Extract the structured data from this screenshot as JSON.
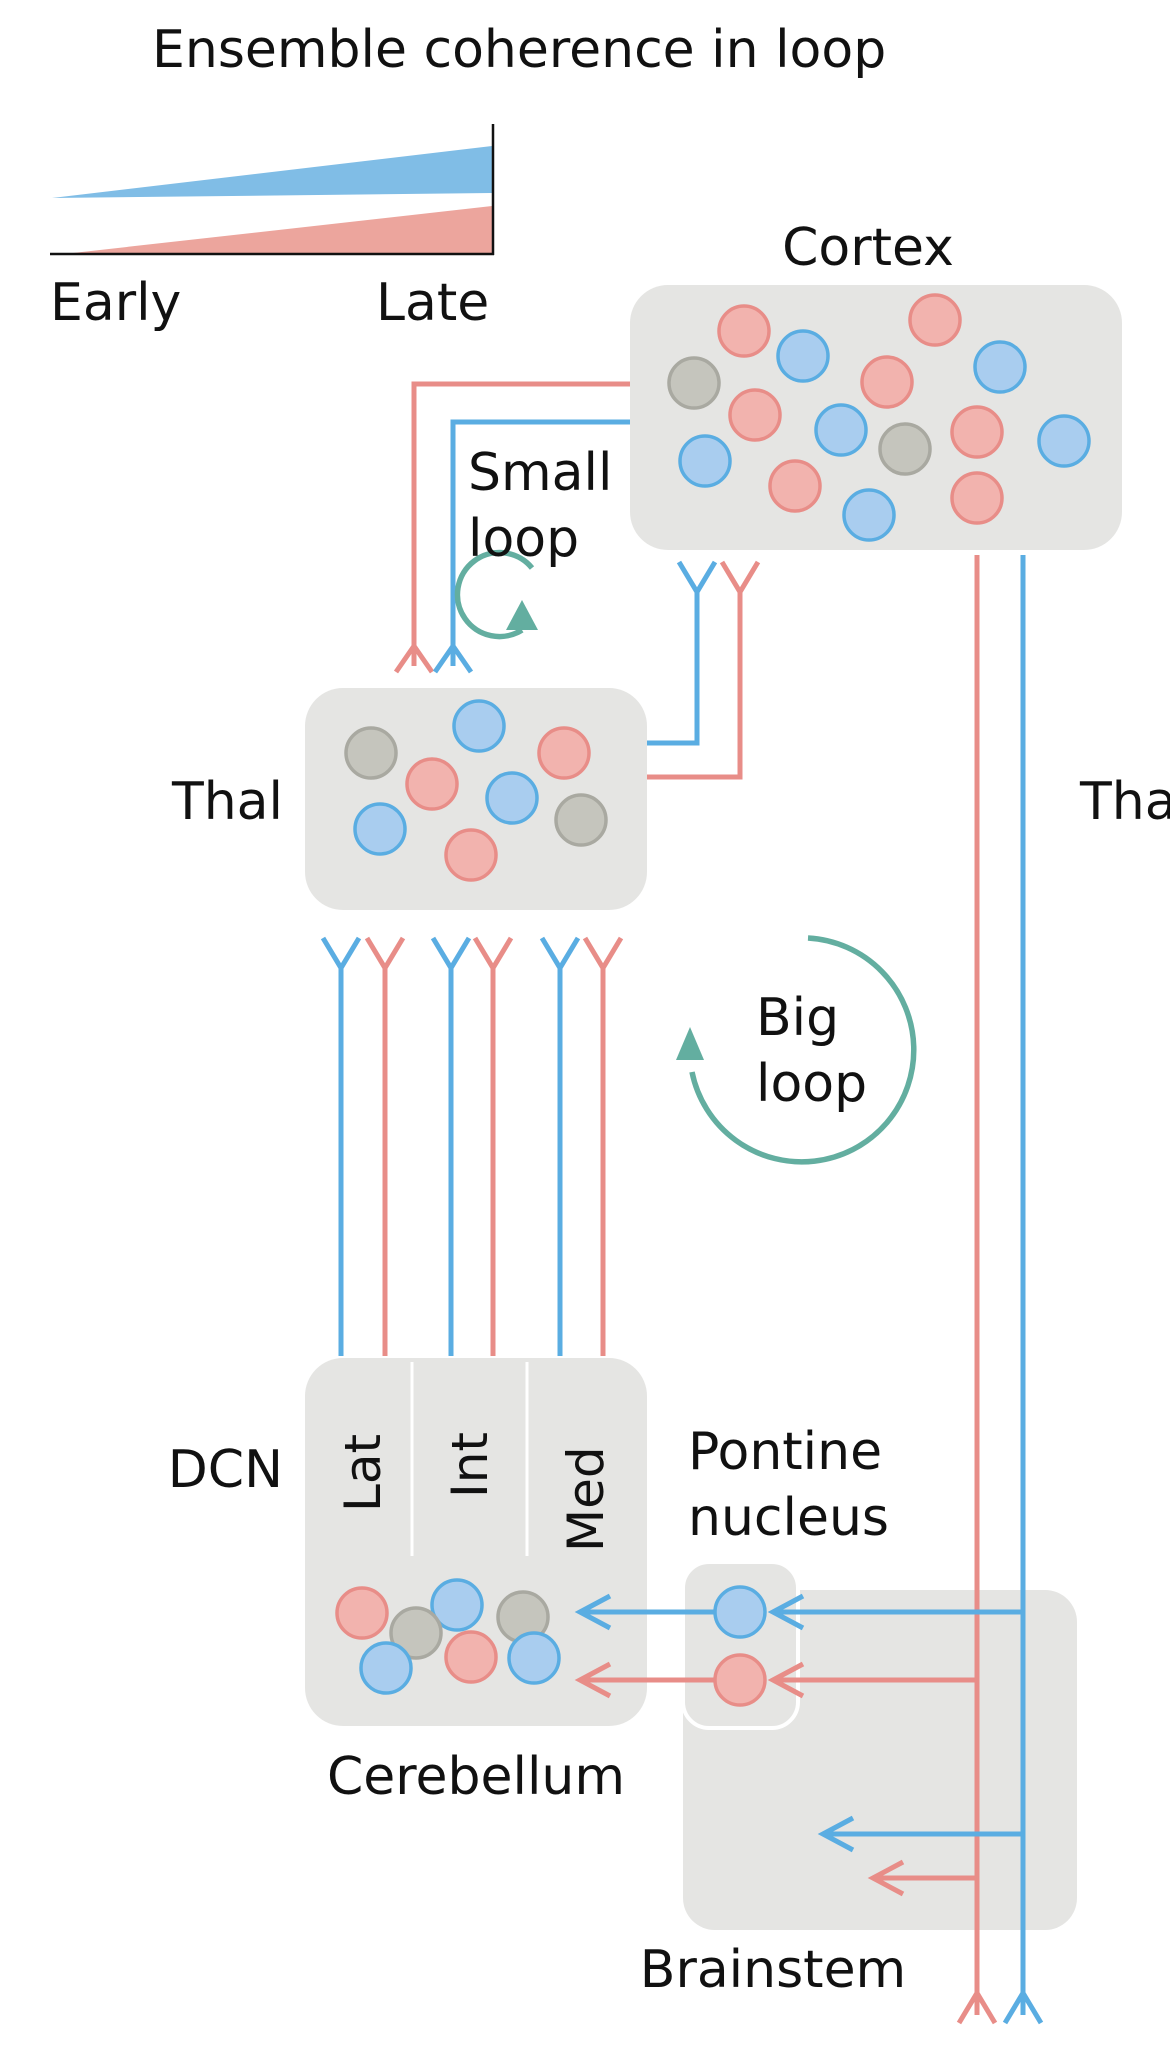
{
  "legend": {
    "title": "Ensemble coherence in loop",
    "start_label": "Early",
    "end_label": "Late"
  },
  "regions": {
    "cortex": "Cortex",
    "thalamus": "Thal",
    "thalamus_right_cropped": "Thal",
    "dcn": "DCN",
    "cerebellum": "Cerebellum",
    "pontine_nucleus_line1": "Pontine",
    "pontine_nucleus_line2": "nucleus",
    "brainstem": "Brainstem"
  },
  "dcn_subnuclei": [
    "Lat",
    "Int",
    "Med"
  ],
  "loops": {
    "small_line1": "Small",
    "small_line2": "loop",
    "big_line1": "Big",
    "big_line2": "loop"
  },
  "colors": {
    "early_blue": "#5aade2",
    "late_red": "#e88d88",
    "neuron_blue_fill": "#a9cdef",
    "neuron_red_fill": "#f2b3ae",
    "neuron_gray_fill": "#c5c5bd",
    "neuron_gray_stroke": "#a9a9a1",
    "region_fill": "#e5e5e3",
    "loop_arrow_teal": "#63aea0",
    "legend_blue": "#80bde6",
    "legend_red": "#eca59d"
  },
  "icons": {
    "neuron": "circle",
    "axon_terminal": "fork-y-icon",
    "loop_arrow": "circular-arrow-icon"
  }
}
